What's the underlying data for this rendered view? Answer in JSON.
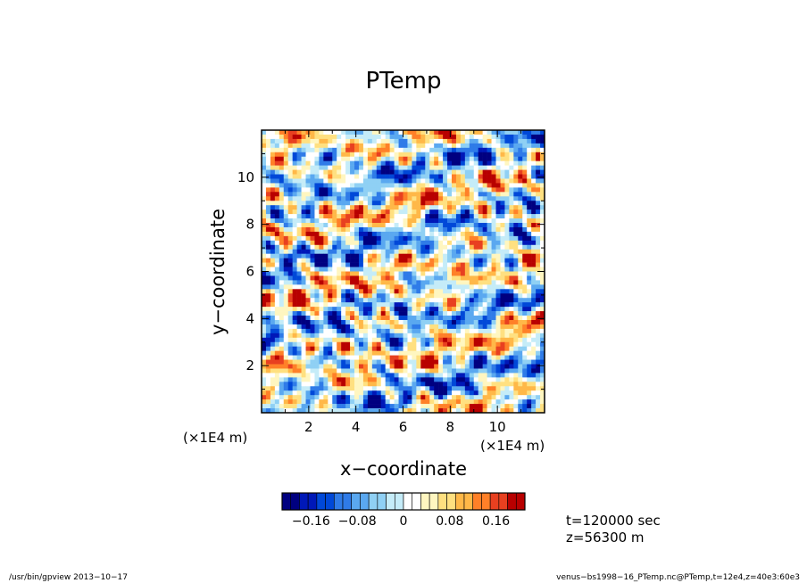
{
  "chart_data": {
    "type": "heatmap",
    "title": "PTemp",
    "xlabel": "x−coordinate",
    "ylabel": "y−coordinate",
    "x_unit_label": "(×1E4 m)",
    "y_unit_label": "(×1E4 m)",
    "xlim": [
      0,
      12
    ],
    "ylim": [
      0,
      12
    ],
    "x_ticks": [
      "2",
      "4",
      "6",
      "8",
      "10"
    ],
    "y_ticks": [
      "2",
      "4",
      "6",
      "8",
      "10"
    ],
    "colorbar": {
      "min": -0.21,
      "max": 0.21,
      "tick_labels": [
        "−0.16",
        "−0.08",
        "0",
        "0.08",
        "0.16"
      ],
      "tick_values": [
        -0.16,
        -0.08,
        0,
        0.08,
        0.16
      ],
      "colors": [
        "#000080",
        "#0018b8",
        "#0048d8",
        "#2f7be8",
        "#5aa8f0",
        "#8fd0f4",
        "#c5ecf8",
        "#ffffff",
        "#fff6c0",
        "#ffe080",
        "#ffb848",
        "#ff8028",
        "#e84020",
        "#b80000"
      ]
    },
    "annotations": [
      "t=120000 sec",
      "z=56300 m"
    ]
  },
  "footer": {
    "left": "/usr/bin/gpview   2013−10−17",
    "right": "venus−bs1998−16_PTemp.nc@PTemp,t=12e4,z=40e3:60e3"
  }
}
